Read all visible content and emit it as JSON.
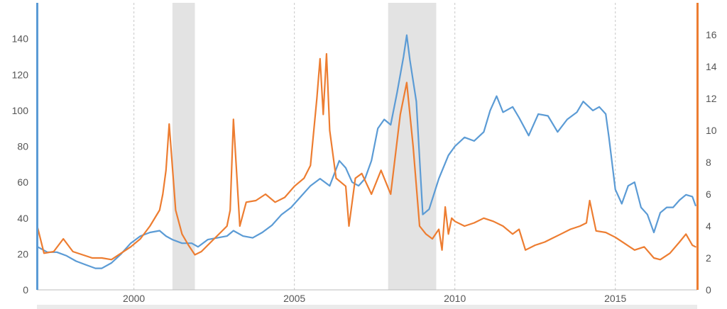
{
  "chart_data": {
    "type": "line",
    "title": "",
    "xlabel": "",
    "ylabel": "",
    "xlim": [
      1997.0,
      2017.55
    ],
    "ylim_left": [
      0,
      160
    ],
    "ylim_right": [
      0,
      18
    ],
    "x_ticks": [
      2000,
      2005,
      2010,
      2015
    ],
    "x_tick_labels": [
      "2000",
      "2005",
      "2010",
      "2015"
    ],
    "y_ticks_left": [
      0,
      20,
      40,
      60,
      80,
      100,
      120,
      140
    ],
    "y_tick_labels_left": [
      "0",
      "20",
      "40",
      "60",
      "80",
      "100",
      "120",
      "140"
    ],
    "y_ticks_right": [
      0,
      2,
      4,
      6,
      8,
      10,
      12,
      14,
      16
    ],
    "y_tick_labels_right": [
      "0",
      "2",
      "4",
      "6",
      "8",
      "10",
      "12",
      "14",
      "16"
    ],
    "grid": {
      "vertical": true,
      "horizontal": false,
      "style": "dashed"
    },
    "legend": "none",
    "shaded_ranges": [
      {
        "x0": 2001.2,
        "x1": 2001.9
      },
      {
        "x0": 2007.92,
        "x1": 2009.42
      }
    ],
    "series": [
      {
        "axis": "left",
        "color": "#5b9bd5",
        "x": [
          1997.0,
          1997.3,
          1997.6,
          1997.9,
          1998.2,
          1998.5,
          1998.8,
          1999.0,
          1999.3,
          1999.6,
          1999.9,
          2000.2,
          2000.5,
          2000.8,
          2001.0,
          2001.2,
          2001.5,
          2001.8,
          2002.0,
          2002.3,
          2002.6,
          2002.9,
          2003.1,
          2003.4,
          2003.7,
          2004.0,
          2004.3,
          2004.6,
          2004.9,
          2005.2,
          2005.5,
          2005.8,
          2006.1,
          2006.4,
          2006.6,
          2006.8,
          2007.0,
          2007.2,
          2007.4,
          2007.6,
          2007.8,
          2008.0,
          2008.2,
          2008.4,
          2008.5,
          2008.6,
          2008.8,
          2009.0,
          2009.2,
          2009.5,
          2009.8,
          2010.0,
          2010.3,
          2010.6,
          2010.9,
          2011.1,
          2011.3,
          2011.5,
          2011.8,
          2012.0,
          2012.3,
          2012.6,
          2012.9,
          2013.2,
          2013.5,
          2013.8,
          2014.0,
          2014.3,
          2014.5,
          2014.7,
          2014.8,
          2015.0,
          2015.2,
          2015.4,
          2015.6,
          2015.8,
          2016.0,
          2016.2,
          2016.4,
          2016.6,
          2016.8,
          2017.0,
          2017.2,
          2017.4,
          2017.5
        ],
        "y": [
          24,
          21,
          21,
          19,
          16,
          14,
          12,
          12,
          15,
          20,
          26,
          30,
          32,
          33,
          30,
          28,
          26,
          26,
          24,
          28,
          29,
          30,
          33,
          30,
          29,
          32,
          36,
          42,
          46,
          52,
          58,
          62,
          58,
          72,
          68,
          60,
          58,
          62,
          72,
          90,
          95,
          92,
          110,
          130,
          142,
          128,
          105,
          42,
          45,
          62,
          75,
          80,
          85,
          83,
          88,
          100,
          108,
          99,
          102,
          96,
          86,
          98,
          97,
          88,
          95,
          99,
          105,
          100,
          102,
          98,
          85,
          56,
          48,
          58,
          60,
          46,
          42,
          32,
          43,
          46,
          46,
          50,
          53,
          52,
          47
        ]
      },
      {
        "axis": "right",
        "color": "#ed7d31",
        "x": [
          1997.0,
          1997.2,
          1997.5,
          1997.8,
          1998.1,
          1998.4,
          1998.7,
          1999.0,
          1999.3,
          1999.6,
          1999.9,
          2000.2,
          2000.5,
          2000.8,
          2000.9,
          2001.0,
          2001.1,
          2001.3,
          2001.5,
          2001.7,
          2001.9,
          2002.1,
          2002.4,
          2002.7,
          2002.9,
          2003.0,
          2003.1,
          2003.3,
          2003.5,
          2003.8,
          2004.1,
          2004.4,
          2004.7,
          2005.0,
          2005.3,
          2005.5,
          2005.7,
          2005.8,
          2005.9,
          2006.0,
          2006.1,
          2006.3,
          2006.6,
          2006.7,
          2006.9,
          2007.1,
          2007.4,
          2007.7,
          2008.0,
          2008.3,
          2008.5,
          2008.7,
          2008.9,
          2009.1,
          2009.3,
          2009.5,
          2009.6,
          2009.7,
          2009.8,
          2009.9,
          2010.0,
          2010.3,
          2010.6,
          2010.9,
          2011.2,
          2011.5,
          2011.8,
          2012.0,
          2012.2,
          2012.5,
          2012.8,
          2013.0,
          2013.3,
          2013.6,
          2013.9,
          2014.1,
          2014.2,
          2014.4,
          2014.7,
          2015.0,
          2015.3,
          2015.6,
          2015.9,
          2016.2,
          2016.4,
          2016.7,
          2017.0,
          2017.2,
          2017.4,
          2017.5
        ],
        "y": [
          3.9,
          2.3,
          2.4,
          3.2,
          2.4,
          2.2,
          2.0,
          2.0,
          1.9,
          2.3,
          2.7,
          3.2,
          4.0,
          5.0,
          6.0,
          7.5,
          10.4,
          5.0,
          3.5,
          2.8,
          2.2,
          2.4,
          3.0,
          3.6,
          4.0,
          5.0,
          10.7,
          4.0,
          5.5,
          5.6,
          6.0,
          5.5,
          5.8,
          6.5,
          7.0,
          7.8,
          12.0,
          14.5,
          11.0,
          14.8,
          10.0,
          7.0,
          6.5,
          4.0,
          7.0,
          7.3,
          6.0,
          7.5,
          6.0,
          11.0,
          13.0,
          9.0,
          4.0,
          3.5,
          3.2,
          3.8,
          2.5,
          5.2,
          3.5,
          4.5,
          4.3,
          4.0,
          4.2,
          4.5,
          4.3,
          4.0,
          3.5,
          3.8,
          2.5,
          2.8,
          3.0,
          3.2,
          3.5,
          3.8,
          4.0,
          4.2,
          5.6,
          3.7,
          3.6,
          3.3,
          2.9,
          2.5,
          2.7,
          2.0,
          1.9,
          2.3,
          3.0,
          3.5,
          2.8,
          2.7
        ]
      }
    ]
  },
  "colors": {
    "left_axis": "#5b9bd5",
    "right_axis": "#ed7d31",
    "shade": "#e3e3e3",
    "footer_band": "#ebebeb"
  }
}
